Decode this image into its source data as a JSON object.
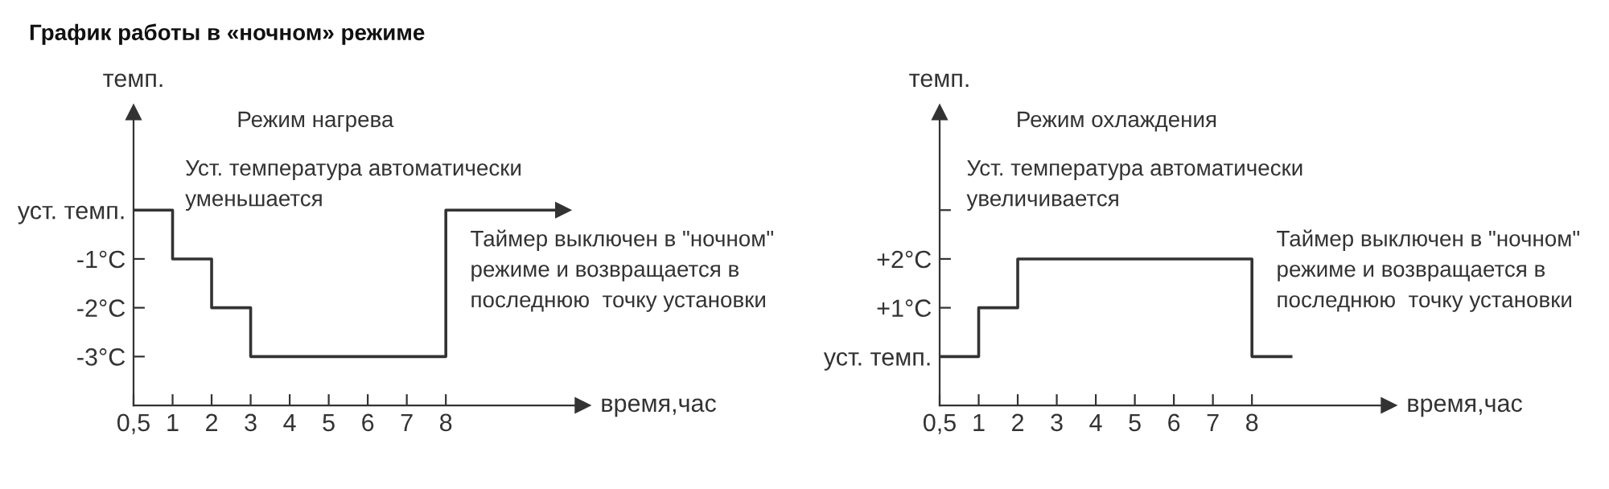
{
  "chart_data": [
    {
      "type": "step",
      "title": "График работы в «ночном» режиме",
      "xlabel": "время,час",
      "ylabel": "темп.",
      "categories": [
        "0,5",
        "1",
        "2",
        "3",
        "4",
        "5",
        "6",
        "7",
        "8",
        null,
        null,
        null
      ],
      "ylim": [
        -4,
        2
      ],
      "yticks": [
        {
          "value": 0,
          "label": "уст. темп."
        },
        {
          "value": -1,
          "label": "-1°C"
        },
        {
          "value": -2,
          "label": "-2°C"
        },
        {
          "value": -3,
          "label": "-3°C"
        }
      ],
      "series": [
        {
          "color": "#333333",
          "values": [
            0,
            -1,
            -2,
            -3,
            -3,
            -3,
            -3,
            -3,
            0,
            0,
            0,
            0
          ]
        }
      ],
      "annotations": [
        "Режим нагрева",
        "Уст. температура автоматически\nуменьшается",
        "Таймер выключен в \"ночном\"\nрежиме и возвращается в\nпоследнюю  точку установки"
      ]
    },
    {
      "type": "step",
      "xlabel": "время,час",
      "ylabel": "темп.",
      "categories": [
        "0,5",
        "1",
        "2",
        "3",
        "4",
        "5",
        "6",
        "7",
        "8",
        null,
        null,
        null
      ],
      "ylim": [
        -1,
        5
      ],
      "yticks": [
        {
          "value": 0,
          "label": "уст. темп."
        },
        {
          "value": 1,
          "label": "+1°C"
        },
        {
          "value": 2,
          "label": "+2°C"
        },
        {
          "value": 3,
          "label": null
        }
      ],
      "series": [
        {
          "color": "#333333",
          "values": [
            0,
            1,
            2,
            2,
            2,
            2,
            2,
            2,
            0,
            0,
            null,
            null
          ]
        }
      ],
      "annotations": [
        "Режим охлаждения",
        "Уст. температура автоматически\nувеличивается",
        "Таймер выключен в \"ночном\"\nрежиме и возвращается в\nпоследнюю  точку установки"
      ]
    }
  ]
}
